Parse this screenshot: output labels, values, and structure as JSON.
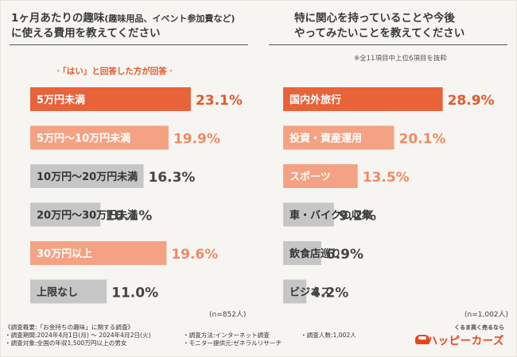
{
  "left_panel": {
    "title_line1": "1ヶ月あたりの趣味",
    "title_paren": "(趣味用品、イベント参加費など)",
    "title_line2": "に使える費用を教えてください",
    "note": "「はい」と回答した方が回答",
    "note_bullet": "・",
    "sample": "(n=852人)"
  },
  "right_panel": {
    "title_line1": "特に関心を持っていることや今後",
    "title_line2": "やってみたいことを教えてください",
    "note": "※全11項目中上位6項目を抜粋",
    "sample": "(n=1,002人)"
  },
  "chart_data": [
    {
      "type": "bar",
      "orientation": "horizontal",
      "title": "1ヶ月あたりの趣味(趣味用品、イベント参加費など)に使える費用を教えてください",
      "categories": [
        "5万円未満",
        "5万円〜10万円未満",
        "10万円〜20万円未満",
        "20万円〜30万円未満",
        "30万円以上",
        "上限なし"
      ],
      "values": [
        23.1,
        19.9,
        16.3,
        10.1,
        19.6,
        11.0
      ],
      "labels": [
        "23.1%",
        "19.9%",
        "16.3%",
        "10.1%",
        "19.6%",
        "11.0%"
      ],
      "colors": [
        "#e8623a",
        "#f4a283",
        "#c6c6c6",
        "#c6c6c6",
        "#f4a283",
        "#c6c6c6"
      ],
      "value_colors": [
        "#e05a2b",
        "#f08a63",
        "#444444",
        "#444444",
        "#f08a63",
        "#444444"
      ],
      "label_colors": [
        "#ffffff",
        "#ffffff",
        "#333333",
        "#333333",
        "#ffffff",
        "#333333"
      ],
      "xlim": [
        0,
        27
      ]
    },
    {
      "type": "bar",
      "orientation": "horizontal",
      "title": "特に関心を持っていることや今後やってみたいことを教えてください",
      "categories": [
        "国内外旅行",
        "投資・資産運用",
        "スポーツ",
        "車・バイクの収集",
        "飲食店巡り",
        "ビジネス"
      ],
      "values": [
        28.9,
        20.1,
        13.5,
        9.2,
        6.9,
        4.2
      ],
      "labels": [
        "28.9%",
        "20.1%",
        "13.5%",
        "9.2%",
        "6.9%",
        "4.2%"
      ],
      "colors": [
        "#e8623a",
        "#f4a283",
        "#f4a283",
        "#c6c6c6",
        "#c6c6c6",
        "#c6c6c6"
      ],
      "value_colors": [
        "#e05a2b",
        "#f08a63",
        "#f08a63",
        "#444444",
        "#444444",
        "#444444"
      ],
      "label_colors": [
        "#ffffff",
        "#ffffff",
        "#ffffff",
        "#333333",
        "#333333",
        "#333333"
      ],
      "xlim": [
        0,
        34
      ]
    }
  ],
  "footer": {
    "overview": "《調査概要:「お金持ちの趣味」に関する調査》",
    "period": "・調査期間:2024年4月1日(月) 〜 2024年4月2日(火)",
    "target": "・調査対象:全国の年収1,500万円以上の男女",
    "method": "・調査方法:インターネット調査",
    "provider": "・モニター提供元:ゼネラルリサーチ",
    "respondents": "・調査人数:1,002人"
  },
  "logo": {
    "tagline": "くるま高く売るなら",
    "brand": "ハッピーカーズ"
  }
}
